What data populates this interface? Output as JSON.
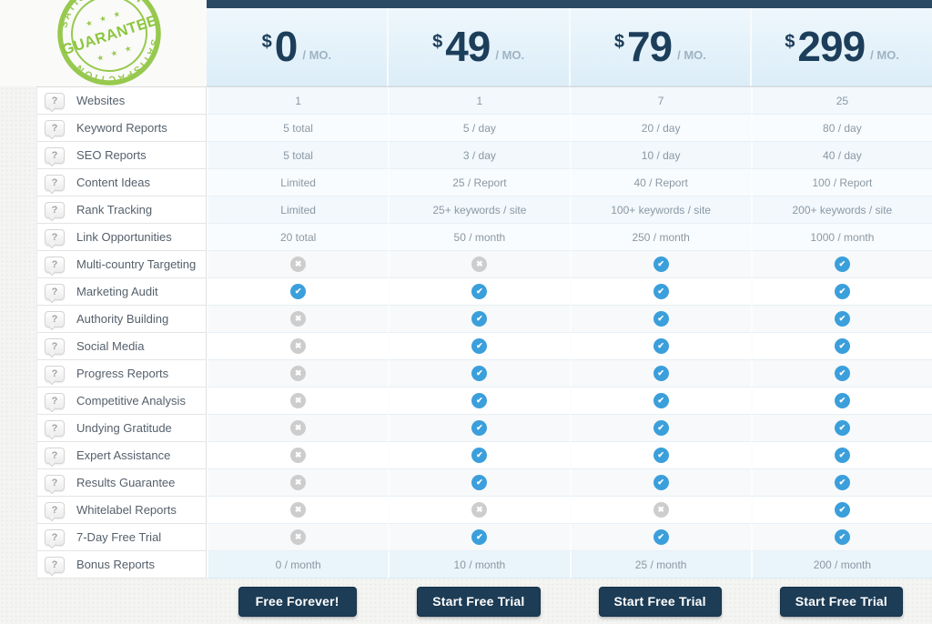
{
  "badge": {
    "ring_text_top": "SATISFACTION",
    "ring_text_bottom": "SATISFACTION",
    "center_text": "GUARANTEE",
    "stars": "★ ★ ★",
    "color": "#97c94e"
  },
  "plans": [
    {
      "currency": "$",
      "price": "0",
      "period": "/ MO.",
      "cta": "Free Forever!"
    },
    {
      "currency": "$",
      "price": "49",
      "period": "/ MO.",
      "cta": "Start Free Trial"
    },
    {
      "currency": "$",
      "price": "79",
      "period": "/ MO.",
      "cta": "Start Free Trial"
    },
    {
      "currency": "$",
      "price": "299",
      "period": "/ MO.",
      "cta": "Start Free Trial"
    }
  ],
  "features": [
    {
      "label": "Websites",
      "values": [
        "1",
        "1",
        "7",
        "25"
      ]
    },
    {
      "label": "Keyword Reports",
      "values": [
        "5 total",
        "5 / day",
        "20 / day",
        "80 / day"
      ]
    },
    {
      "label": "SEO Reports",
      "values": [
        "5 total",
        "3 / day",
        "10 / day",
        "40 / day"
      ]
    },
    {
      "label": "Content Ideas",
      "values": [
        "Limited",
        "25 / Report",
        "40 / Report",
        "100 / Report"
      ]
    },
    {
      "label": "Rank Tracking",
      "values": [
        "Limited",
        "25+ keywords / site",
        "100+ keywords / site",
        "200+ keywords / site"
      ]
    },
    {
      "label": "Link Opportunities",
      "values": [
        "20 total",
        "50 / month",
        "250 / month",
        "1000 / month"
      ]
    },
    {
      "label": "Multi-country Targeting",
      "values": [
        "no",
        "no",
        "yes",
        "yes"
      ]
    },
    {
      "label": "Marketing Audit",
      "values": [
        "yes",
        "yes",
        "yes",
        "yes"
      ]
    },
    {
      "label": "Authority Building",
      "values": [
        "no",
        "yes",
        "yes",
        "yes"
      ]
    },
    {
      "label": "Social Media",
      "values": [
        "no",
        "yes",
        "yes",
        "yes"
      ]
    },
    {
      "label": "Progress Reports",
      "values": [
        "no",
        "yes",
        "yes",
        "yes"
      ]
    },
    {
      "label": "Competitive Analysis",
      "values": [
        "no",
        "yes",
        "yes",
        "yes"
      ]
    },
    {
      "label": "Undying Gratitude",
      "values": [
        "no",
        "yes",
        "yes",
        "yes"
      ]
    },
    {
      "label": "Expert Assistance",
      "values": [
        "no",
        "yes",
        "yes",
        "yes"
      ]
    },
    {
      "label": "Results Guarantee",
      "values": [
        "no",
        "yes",
        "yes",
        "yes"
      ]
    },
    {
      "label": "Whitelabel Reports",
      "values": [
        "no",
        "no",
        "no",
        "yes"
      ]
    },
    {
      "label": "7-Day Free Trial",
      "values": [
        "no",
        "yes",
        "yes",
        "yes"
      ]
    },
    {
      "label": "Bonus Reports",
      "values": [
        "0 / month",
        "10 / month",
        "25 / month",
        "200 / month"
      ],
      "highlight": true
    }
  ],
  "icons": {
    "help": "?",
    "check_glyph": "✔",
    "cross_glyph": "✖"
  },
  "colors": {
    "top_bar": "#2b4a63",
    "button": "#1d3c55",
    "price_text": "#1c3e5a",
    "check": "#3b9fdb",
    "cross": "#cdcdcd",
    "badge_green": "#97c94e",
    "header_bg": "#e4f2fa"
  }
}
